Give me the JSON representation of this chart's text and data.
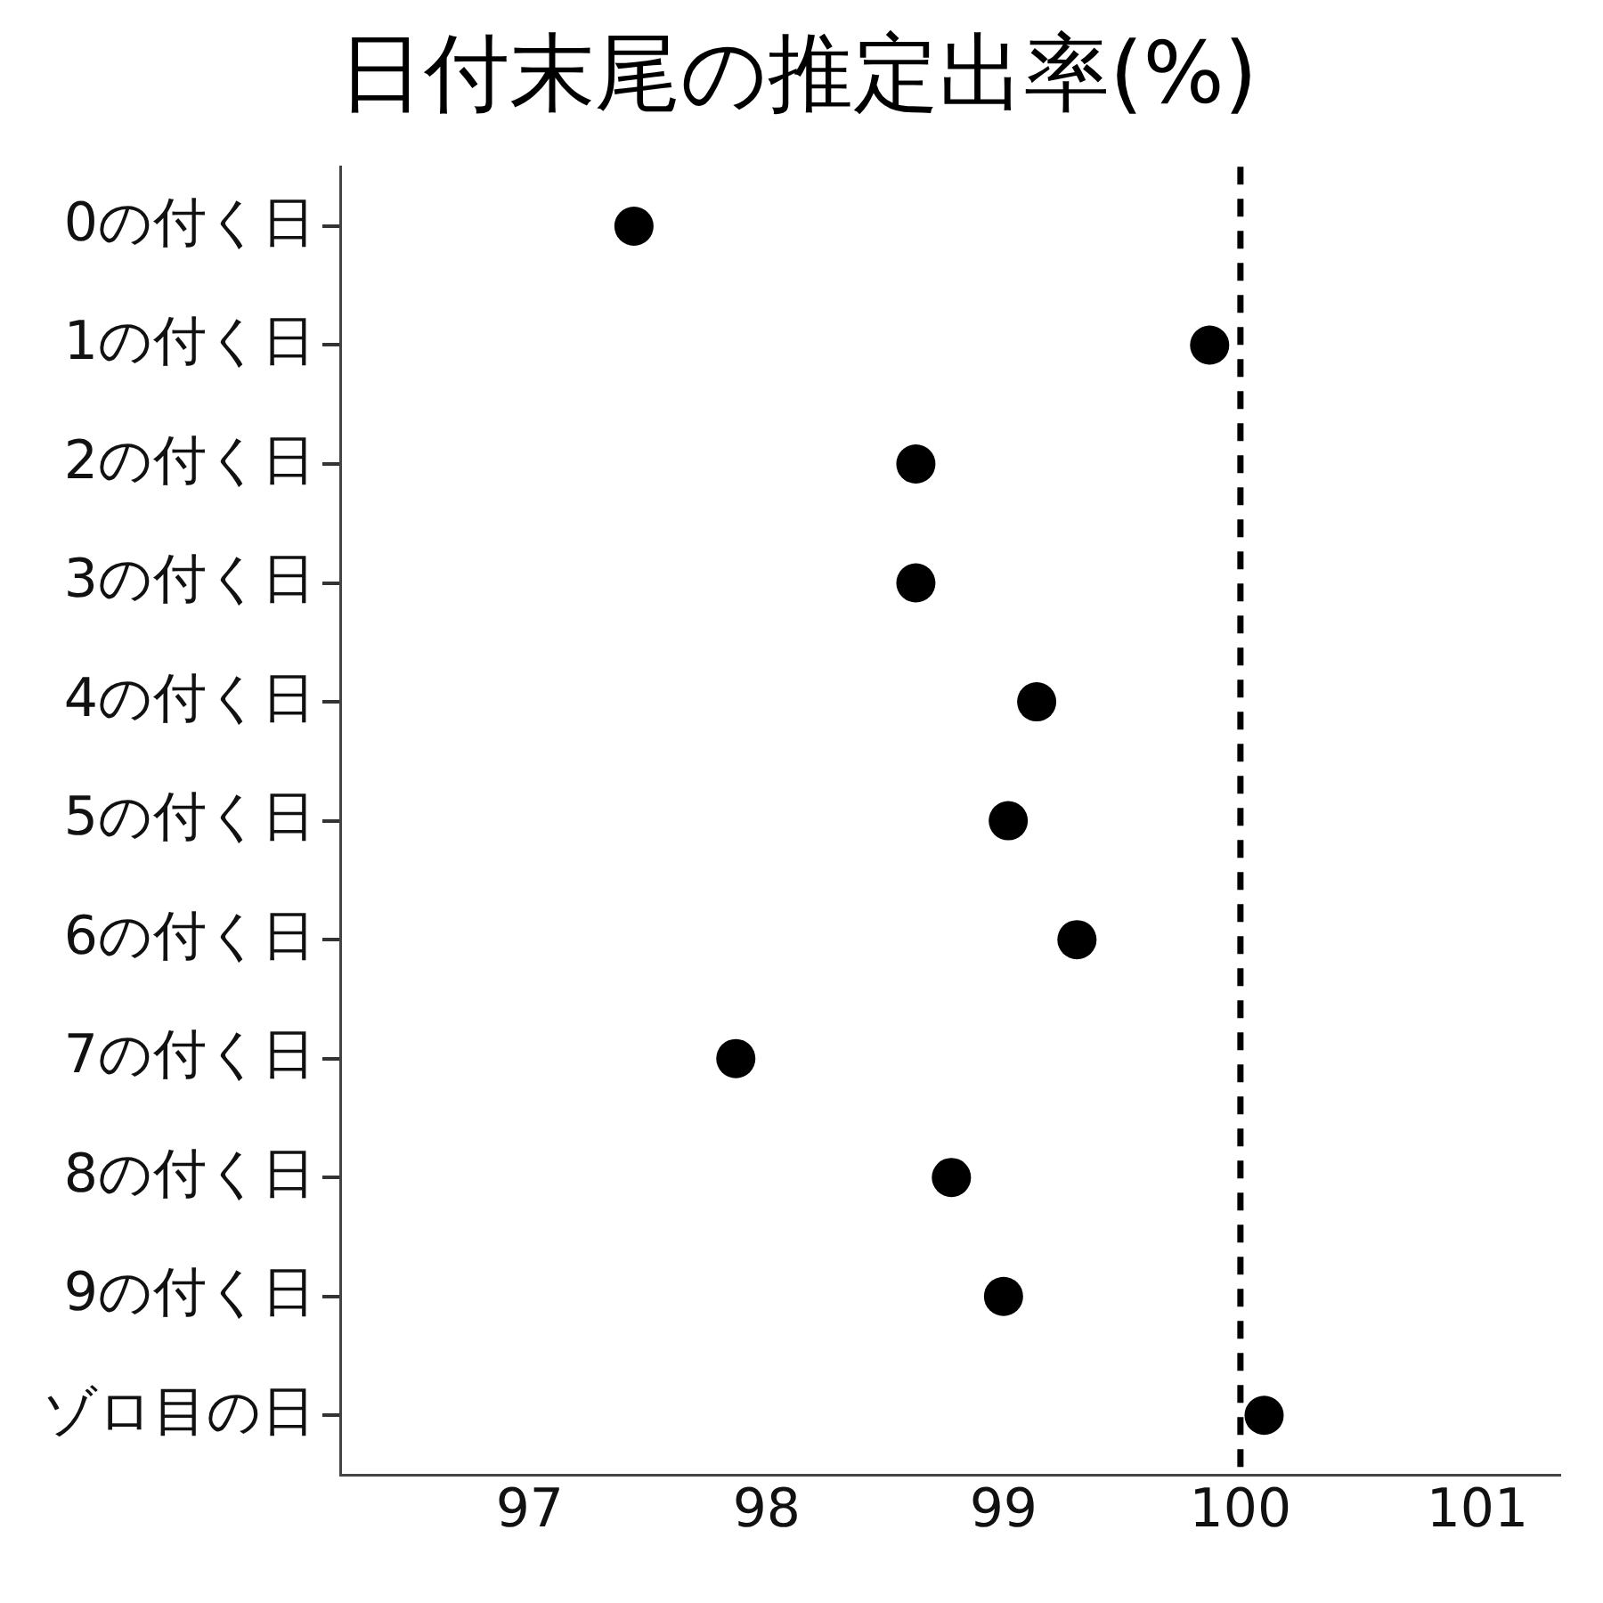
{
  "chart_data": {
    "type": "scatter",
    "title": "日付末尾の推定出率(%)",
    "categories": [
      "0の付く日",
      "1の付く日",
      "2の付く日",
      "3の付く日",
      "4の付く日",
      "5の付く日",
      "6の付く日",
      "7の付く日",
      "8の付く日",
      "9の付く日",
      "ゾロ目の日"
    ],
    "orientation": "horizontal",
    "series": [
      {
        "color": "#000000",
        "values": [
          97.44,
          99.87,
          98.63,
          98.63,
          99.14,
          99.02,
          99.31,
          97.87,
          98.78,
          99.0,
          100.1
        ]
      }
    ],
    "xlim": [
      96.2,
      101.35
    ],
    "xticks": [
      97,
      98,
      99,
      100,
      101
    ],
    "ref_lines": [
      {
        "axis": "x",
        "value": 100,
        "color": "#000000",
        "line_style": "dashed"
      }
    ],
    "grid": false,
    "legend": false,
    "marker": "circle"
  }
}
